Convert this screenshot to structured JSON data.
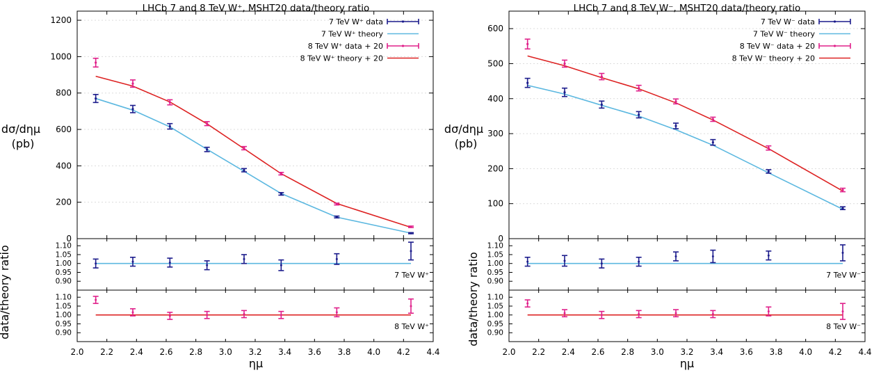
{
  "chart_data": [
    {
      "type": "line",
      "title": "LHCb 7 and 8 TeV W⁺, MSHT20 data/theory ratio",
      "ylabel_main": [
        "dσ/dημ",
        "(pb)"
      ],
      "ylabel_ratio": "data/theory ratio",
      "xlabel": "ημ",
      "xlim": [
        2.0,
        4.4
      ],
      "xticks": [
        "2.0",
        "2.2",
        "2.4",
        "2.6",
        "2.8",
        "3.0",
        "3.2",
        "3.4",
        "3.6",
        "3.8",
        "4.0",
        "4.2",
        "4.4"
      ],
      "main": {
        "ylim": [
          0,
          1250
        ],
        "yticks": [
          "0",
          "200",
          "400",
          "600",
          "800",
          "1000",
          "1200"
        ],
        "x": [
          2.125,
          2.375,
          2.625,
          2.875,
          3.125,
          3.375,
          3.75,
          4.25
        ],
        "series": [
          {
            "name": "7 TeV W⁺ data",
            "kind": "data",
            "color": "#1c1c8c",
            "values": [
              770,
              712,
              617,
              490,
              376,
              246,
              119,
              30
            ],
            "errors": [
              22,
              20,
              15,
              12,
              9,
              7,
              5,
              3
            ]
          },
          {
            "name": "7 TeV W⁺ theory",
            "kind": "theory",
            "color": "#5cb8e0",
            "values": [
              770,
              706,
              614,
              491,
              370,
              248,
              118,
              30
            ]
          },
          {
            "name": "8 TeV W⁺ data + 20",
            "kind": "data",
            "color": "#e0208a",
            "values": [
              967,
              852,
              749,
              632,
              497,
              357,
              190,
              65
            ],
            "errors": [
              24,
              20,
              14,
              11,
              9,
              7,
              5,
              4
            ]
          },
          {
            "name": "8 TeV W⁺ theory + 20",
            "kind": "theory",
            "color": "#dd2222",
            "values": [
              892,
              838,
              751,
              631,
              494,
              357,
              193,
              62
            ]
          }
        ]
      },
      "ratio1": {
        "ylim": [
          0.85,
          1.14
        ],
        "yticks": [
          "0.90",
          "0.95",
          "1.00",
          "1.05",
          "1.10"
        ],
        "label": "7 TeV W⁺",
        "color": "#1c1c8c",
        "line_color": "#5cb8e0",
        "values": [
          1.0,
          1.01,
          1.005,
          0.99,
          1.025,
          0.99,
          1.025,
          1.07
        ],
        "errors": [
          0.025,
          0.025,
          0.025,
          0.025,
          0.025,
          0.03,
          0.03,
          0.05
        ]
      },
      "ratio2": {
        "ylim": [
          0.85,
          1.14
        ],
        "yticks": [
          "0.90",
          "0.95",
          "1.00",
          "1.05",
          "1.10"
        ],
        "label": "8 TeV W⁺",
        "color": "#e0208a",
        "line_color": "#dd2222",
        "values": [
          1.085,
          1.015,
          0.995,
          1.0,
          1.005,
          1.0,
          1.015,
          1.05
        ],
        "errors": [
          0.02,
          0.02,
          0.02,
          0.02,
          0.02,
          0.02,
          0.025,
          0.04
        ]
      }
    },
    {
      "type": "line",
      "title": "LHCb 7 and 8 TeV W⁻, MSHT20 data/theory ratio",
      "ylabel_main": [
        "dσ/dημ",
        "(pb)"
      ],
      "ylabel_ratio": "data/theory ratio",
      "xlabel": "ημ",
      "xlim": [
        2.0,
        4.4
      ],
      "xticks": [
        "2.0",
        "2.2",
        "2.4",
        "2.6",
        "2.8",
        "3.0",
        "3.2",
        "3.4",
        "3.6",
        "3.8",
        "4.0",
        "4.2",
        "4.4"
      ],
      "main": {
        "ylim": [
          0,
          650
        ],
        "yticks": [
          "0",
          "100",
          "200",
          "300",
          "400",
          "500",
          "600"
        ],
        "x": [
          2.125,
          2.375,
          2.625,
          2.875,
          3.125,
          3.375,
          3.75,
          4.25
        ],
        "series": [
          {
            "name": "7 TeV W⁻ data",
            "kind": "data",
            "color": "#1c1c8c",
            "values": [
              445,
              418,
              383,
              354,
              322,
              275,
              192,
              87
            ],
            "errors": [
              13,
              12,
              10,
              9,
              8,
              8,
              5,
              4
            ]
          },
          {
            "name": "7 TeV W⁻ theory",
            "kind": "theory",
            "color": "#5cb8e0",
            "values": [
              438,
              413,
              381,
              350,
              311,
              267,
              188,
              84
            ]
          },
          {
            "name": "8 TeV W⁻ data + 20",
            "kind": "data",
            "color": "#e0208a",
            "values": [
              556,
              500,
              463,
              430,
              392,
              341,
              259,
              139
            ],
            "errors": [
              14,
              10,
              9,
              8,
              7,
              6,
              6,
              5
            ]
          },
          {
            "name": "8 TeV W⁻ theory + 20",
            "kind": "theory",
            "color": "#dd2222",
            "values": [
              522,
              494,
              460,
              428,
              388,
              339,
              257,
              136
            ]
          }
        ]
      },
      "ratio1": {
        "ylim": [
          0.85,
          1.14
        ],
        "yticks": [
          "0.90",
          "0.95",
          "1.00",
          "1.05",
          "1.10"
        ],
        "label": "7 TeV W⁻",
        "color": "#1c1c8c",
        "line_color": "#5cb8e0",
        "values": [
          1.01,
          1.015,
          1.0,
          1.01,
          1.04,
          1.04,
          1.045,
          1.06
        ],
        "errors": [
          0.025,
          0.03,
          0.025,
          0.025,
          0.025,
          0.035,
          0.025,
          0.045
        ]
      },
      "ratio2": {
        "ylim": [
          0.85,
          1.14
        ],
        "yticks": [
          "0.90",
          "0.95",
          "1.00",
          "1.05",
          "1.10"
        ],
        "label": "8 TeV W⁻",
        "color": "#e0208a",
        "line_color": "#dd2222",
        "values": [
          1.065,
          1.01,
          1.0,
          1.005,
          1.01,
          1.005,
          1.02,
          1.02
        ],
        "errors": [
          0.02,
          0.02,
          0.02,
          0.02,
          0.02,
          0.02,
          0.025,
          0.045
        ]
      }
    }
  ]
}
